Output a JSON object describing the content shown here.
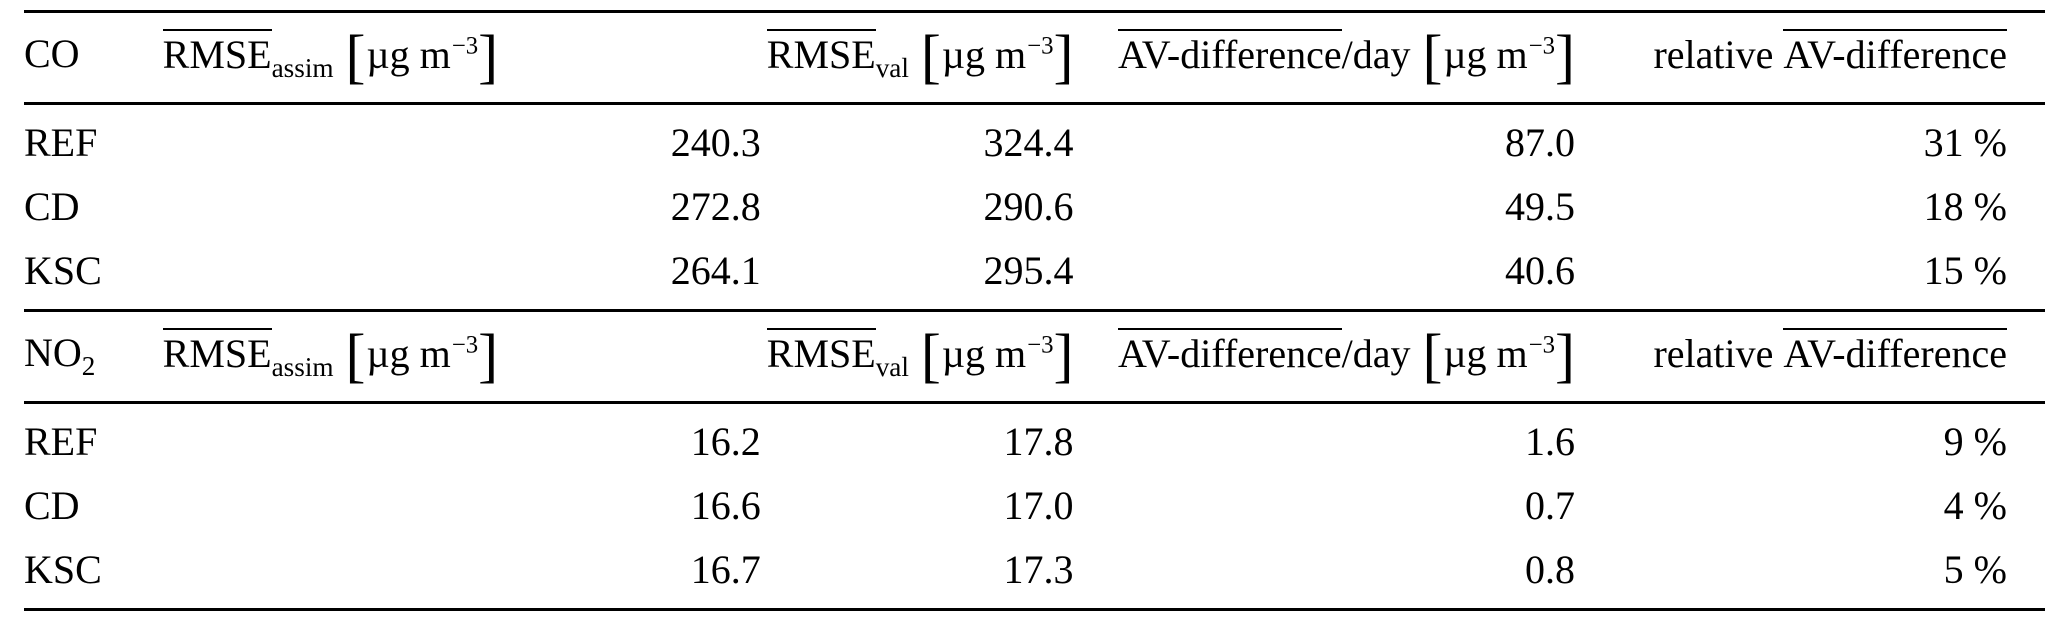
{
  "table": {
    "brackets": {
      "left": "[",
      "right": "]"
    },
    "columns": {
      "rmse_assim": {
        "base": "RMSE",
        "sub": "assim",
        "unit": "µg m",
        "unit_exp": "−3"
      },
      "rmse_val": {
        "base": "RMSE",
        "sub": "val",
        "unit": "µg m",
        "unit_exp": "−3"
      },
      "av_diff": {
        "base": "AV-difference",
        "suffix": "/day",
        "unit": "µg m",
        "unit_exp": "−3"
      },
      "rel_av_diff": {
        "prefix": "relative",
        "base": "AV-difference"
      }
    },
    "sections": [
      {
        "gas": {
          "base": "CO",
          "sub": ""
        },
        "rows": [
          {
            "label": "REF",
            "rmse_assim": "240.3",
            "rmse_val": "324.4",
            "av_diff": "87.0",
            "rel": "31 %"
          },
          {
            "label": "CD",
            "rmse_assim": "272.8",
            "rmse_val": "290.6",
            "av_diff": "49.5",
            "rel": "18 %"
          },
          {
            "label": "KSC",
            "rmse_assim": "264.1",
            "rmse_val": "295.4",
            "av_diff": "40.6",
            "rel": "15 %"
          }
        ]
      },
      {
        "gas": {
          "base": "NO",
          "sub": "2"
        },
        "rows": [
          {
            "label": "REF",
            "rmse_assim": "16.2",
            "rmse_val": "17.8",
            "av_diff": "1.6",
            "rel": "9 %"
          },
          {
            "label": "CD",
            "rmse_assim": "16.6",
            "rmse_val": "17.0",
            "av_diff": "0.7",
            "rel": "4 %"
          },
          {
            "label": "KSC",
            "rmse_assim": "16.7",
            "rmse_val": "17.3",
            "av_diff": "0.8",
            "rel": "5 %"
          }
        ]
      }
    ]
  }
}
